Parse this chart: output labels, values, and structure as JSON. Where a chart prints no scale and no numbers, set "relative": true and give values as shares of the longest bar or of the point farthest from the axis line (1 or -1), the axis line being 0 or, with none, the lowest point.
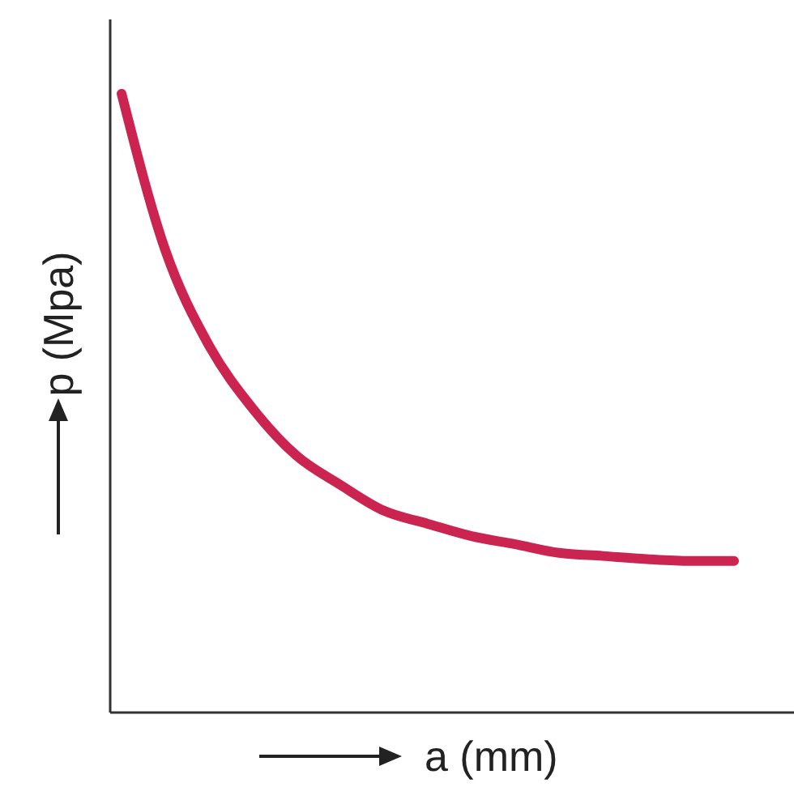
{
  "chart_data": {
    "type": "line",
    "relative": true,
    "xlabel": "a (mm)",
    "ylabel": "p (Mpa)",
    "categories": [
      null,
      null,
      null,
      null,
      null,
      null,
      null,
      null,
      null,
      null,
      null,
      null,
      null,
      null,
      null
    ],
    "series": [
      {
        "color": "#cc2450",
        "values": [
          1,
          0.747,
          0.593,
          0.491,
          0.415,
          0.368,
          0.326,
          0.305,
          0.285,
          0.272,
          0.258,
          0.253,
          0.248,
          0.245,
          0.245
        ]
      }
    ],
    "marker": "none",
    "grid": false,
    "legend": false
  }
}
